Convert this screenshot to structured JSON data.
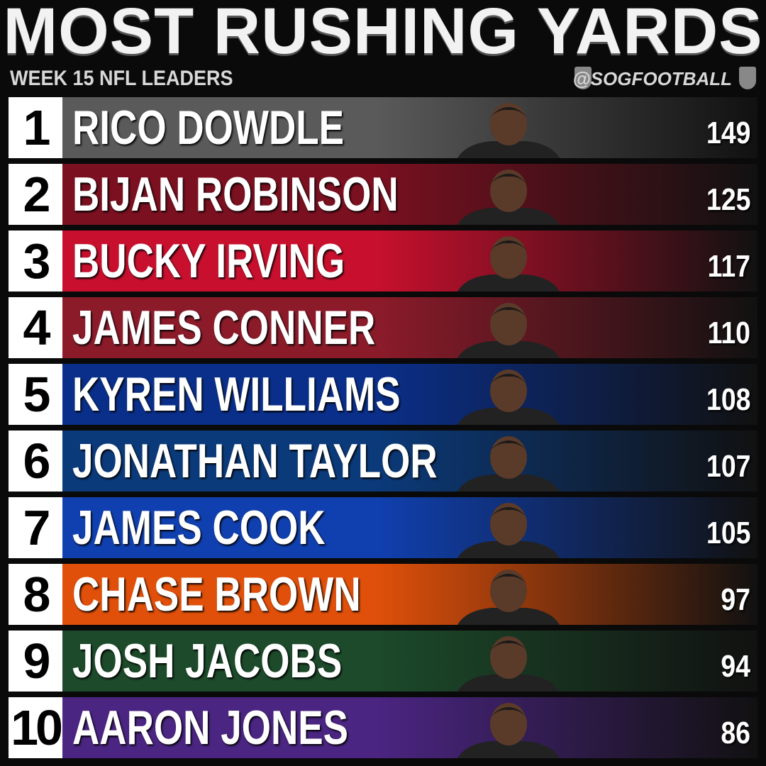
{
  "header": {
    "title": "MOST RUSHING YARDS",
    "subtitle": "WEEK 15 NFL LEADERS",
    "handle": "@SOGFOOTBALL"
  },
  "rows": [
    {
      "rank": 1,
      "name": "RICO DOWDLE",
      "yards": 149,
      "color": "#5a5a5a"
    },
    {
      "rank": 2,
      "name": "BIJAN ROBINSON",
      "yards": 125,
      "color": "#7a1020"
    },
    {
      "rank": 3,
      "name": "BUCKY IRVING",
      "yards": 117,
      "color": "#c8102e"
    },
    {
      "rank": 4,
      "name": "JAMES CONNER",
      "yards": 110,
      "color": "#8c1b2a"
    },
    {
      "rank": 5,
      "name": "KYREN WILLIAMS",
      "yards": 108,
      "color": "#0a2f8a"
    },
    {
      "rank": 6,
      "name": "JONATHAN TAYLOR",
      "yards": 107,
      "color": "#0b3a7a"
    },
    {
      "rank": 7,
      "name": "JAMES COOK",
      "yards": 105,
      "color": "#1040b0"
    },
    {
      "rank": 8,
      "name": "CHASE BROWN",
      "yards": 97,
      "color": "#e0500a"
    },
    {
      "rank": 9,
      "name": "JOSH JACOBS",
      "yards": 94,
      "color": "#1c4a2a"
    },
    {
      "rank": 10,
      "name": "AARON JONES",
      "yards": 86,
      "color": "#4b2582"
    }
  ]
}
